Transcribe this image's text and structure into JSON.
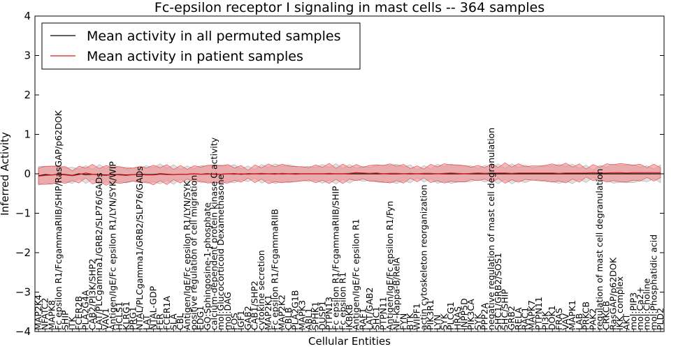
{
  "chart_data": {
    "type": "line",
    "title": "Fc-epsilon receptor I signaling in mast cells -- 364 samples",
    "xlabel": "Cellular Entities",
    "ylabel": "Inferred Activity",
    "ylim": [
      -4,
      4
    ],
    "yticks": [
      -4,
      -3,
      -2,
      -1,
      0,
      1,
      2,
      3,
      4
    ],
    "ytick_labels": [
      "−4",
      "−3",
      "−2",
      "−1",
      "0",
      "1",
      "2",
      "3",
      "4"
    ],
    "legend_position": "upper-left",
    "categories": [
      "MAP2K4",
      "NFATC2",
      "MAPK8",
      "Fc epsilon R1/FcgammaRIIB/SHIP/RasGAP/p62DOK",
      "SHIP",
      "ITK",
      "FCER2B",
      "PLA2G4A",
      "CAB2/PI3K/SHP2",
      "LAT/PLCgamma1/GRB2/SLP76/GADs",
      "VAV1",
      "Antigen/IgE/Fc epsilon R1/LYN/SYK/WIP",
      "HCLS1",
      "KLRG1",
      "PRG1",
      "NTAL/PLCgamma1/GRB2/SLP76/GADs",
      "LAT",
      "NTAL-GDP",
      "FER",
      "FCER1A",
      "SLA",
      "CBL",
      "Antigen/IgE/Fc epsilon R1/LYN/SYK",
      "positive regulation of cell migration",
      "EDG1",
      "GO:Sphingosine-1-phosphate",
      "calcium-dependent protein kinase C activity",
      "mol:Glucocorticoid Dexamethasone",
      "mol:DAG",
      "FOS",
      "IGF1",
      "GAB2",
      "CAB1/SHP2",
      "cytokine secretion",
      "MAP2K1",
      "Fc epsilon R1/FcgammaRIIB",
      "MAP2K2",
      "CBLB",
      "PLA2G1B",
      "MAPK3",
      "ABL1",
      "SPHK1",
      "DUSP1",
      "PTPN13",
      "Fc epsilon R1/FcgammaRIIB/SHIP",
      "Fc epsilon R1",
      "IKBKB",
      "Antigen/IgE/Fc epsilon R1",
      "RAF1",
      "LAT/GAB2",
      "SHC1",
      "PTPN11",
      "Antigen/IgE/Fc epsilon R1/Fyn",
      "NF-kappa-B/RelA",
      "FYN",
      "BTK",
      "WIPF1",
      "actin cytoskeleton reorganization",
      "PIK3R1",
      "LYN",
      "SYK",
      "PLCG1",
      "HRAS",
      "INPP5D",
      "PIK3CA",
      "SYK",
      "PPP2A",
      "negative regulation of mast cell degranulation",
      "SHC1/GRB2/SOS1",
      "SHC/SHIP",
      "GRB2",
      "RELA",
      "RAC1",
      "MAPK7",
      "PTPN11",
      "PI3K",
      "DOK1",
      "FRAS",
      "VAV",
      "MAPK1",
      "LAB",
      "PRKCB",
      "PAK2",
      "regulation of mast cell degranulation",
      "CRKCB",
      "RasGAP/p62DOK",
      "IKK complex",
      "AKT",
      "mol:PIP3",
      "mol:Ca2+",
      "mol:Choline",
      "mol:Phosphatidic acid",
      "PLD2"
    ],
    "series": [
      {
        "name": "Mean activity in all permuted samples",
        "color": "#000000",
        "values": [
          -0.05,
          -0.02,
          -0.03,
          -0.01,
          -0.02,
          -0.04,
          0.0,
          -0.02,
          -0.01,
          -0.02,
          -0.03,
          -0.02,
          -0.02,
          -0.03,
          -0.02,
          -0.01,
          -0.02,
          -0.02,
          0.0,
          -0.01,
          -0.02,
          -0.01,
          -0.01,
          0.0,
          -0.01,
          0.0,
          -0.01,
          -0.01,
          0.0,
          0.0,
          -0.01,
          0.0,
          0.0,
          0.0,
          0.0,
          0.0,
          0.0,
          0.0,
          0.0,
          0.0,
          0.0,
          0.0,
          0.0,
          0.0,
          0.0,
          0.0,
          0.0,
          0.0,
          0.0,
          0.0,
          0.0,
          0.0,
          0.0,
          0.0,
          0.0,
          0.0,
          0.0,
          0.0,
          0.0,
          0.0,
          0.0,
          0.0,
          0.0,
          0.0,
          0.0,
          0.0,
          0.0,
          0.0,
          0.0,
          0.0,
          0.0,
          0.0,
          0.0,
          0.0,
          0.0,
          0.0,
          0.0,
          0.0,
          0.0,
          0.0,
          0.0,
          0.0,
          0.0,
          0.0,
          0.0,
          0.0,
          0.0,
          0.0,
          0.0,
          0.0,
          0.0,
          0.0,
          0.0
        ]
      },
      {
        "name": "Mean activity in patient samples",
        "color": "#e31a1c",
        "values": [
          -0.06,
          -0.04,
          -0.03,
          -0.02,
          -0.03,
          -0.05,
          -0.02,
          0.02,
          -0.01,
          -0.03,
          -0.04,
          -0.02,
          -0.03,
          -0.04,
          -0.02,
          -0.02,
          -0.03,
          -0.03,
          -0.01,
          -0.02,
          -0.02,
          -0.01,
          -0.01,
          0.0,
          -0.01,
          -0.01,
          0.0,
          -0.01,
          0.0,
          -0.01,
          0.0,
          -0.01,
          0.0,
          0.01,
          0.0,
          -0.01,
          0.01,
          0.0,
          -0.01,
          0.0,
          0.0,
          0.0,
          0.0,
          0.01,
          0.0,
          0.0,
          0.01,
          0.03,
          0.02,
          0.01,
          0.02,
          0.0,
          0.01,
          0.01,
          0.0,
          0.01,
          0.0,
          0.01,
          0.01,
          0.0,
          0.01,
          0.02,
          0.01,
          0.0,
          0.01,
          0.02,
          0.01,
          0.02,
          0.02,
          0.02,
          0.01,
          0.02,
          0.02,
          0.02,
          0.02,
          0.02,
          0.02,
          0.01,
          0.02,
          0.02,
          0.02,
          0.02,
          0.03,
          0.02,
          0.02,
          0.03,
          0.03,
          0.02,
          0.03,
          0.03,
          0.03,
          0.03,
          0.03
        ]
      }
    ]
  }
}
